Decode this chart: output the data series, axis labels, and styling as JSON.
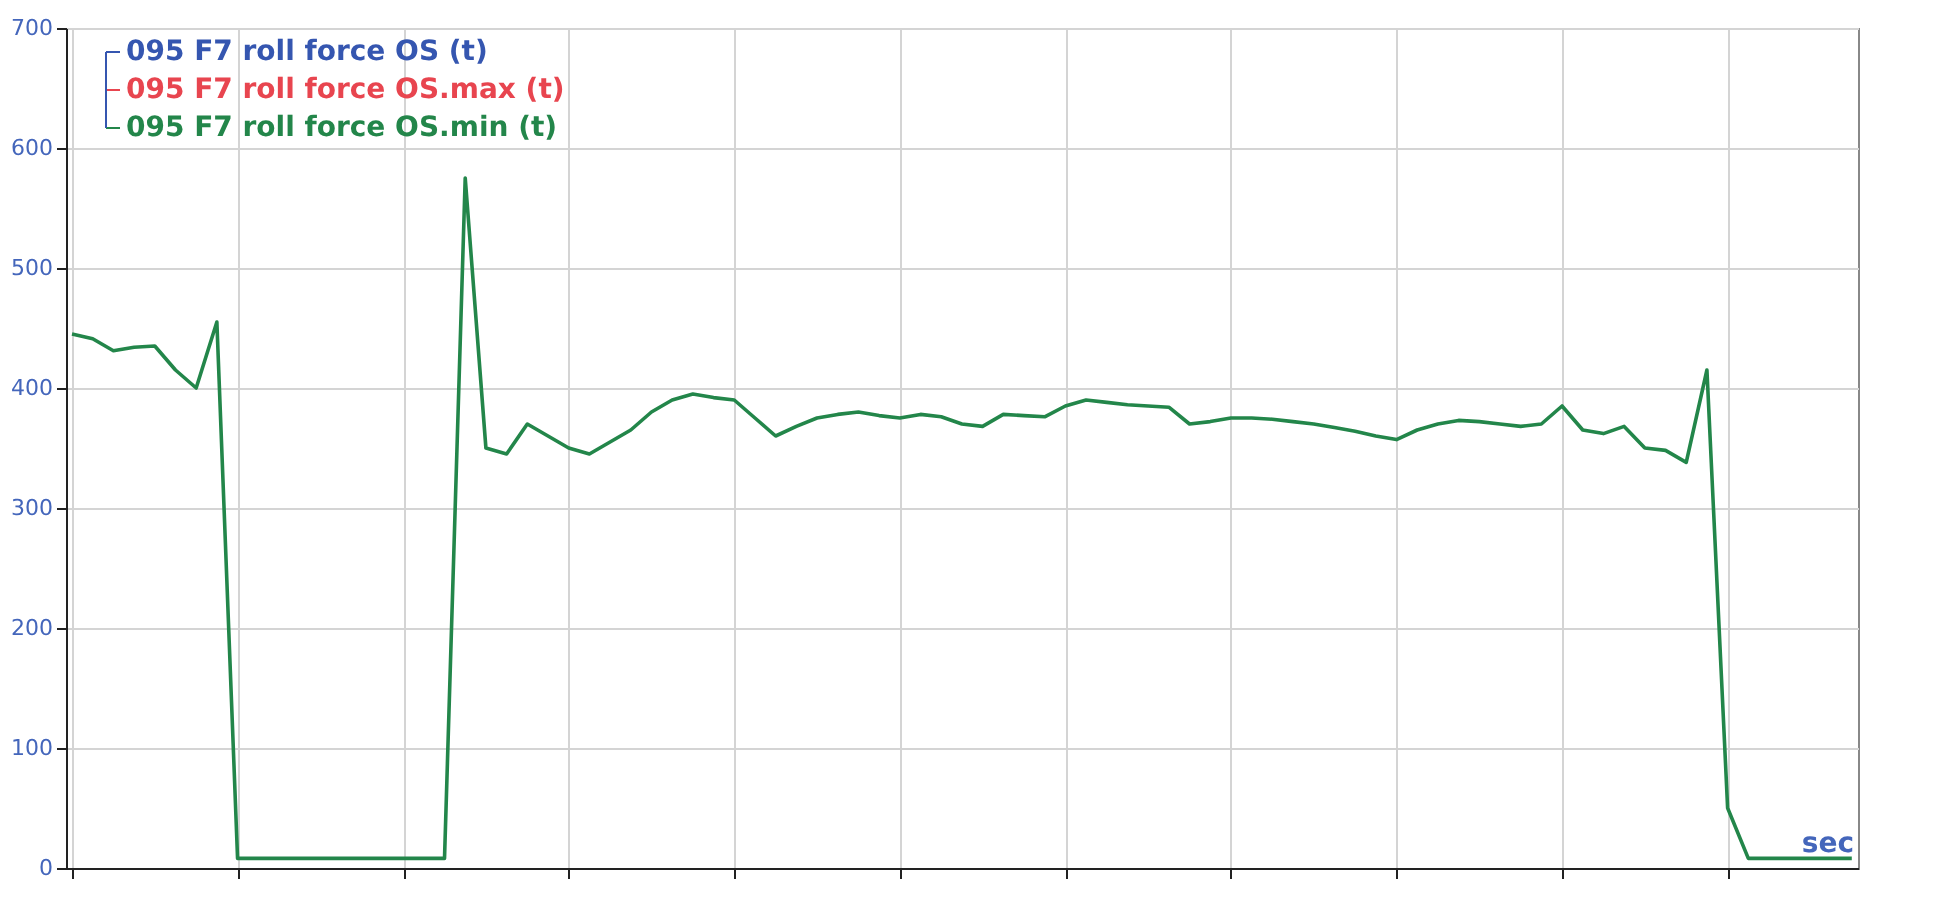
{
  "chart_data": {
    "type": "line",
    "xlabel": "sec",
    "categories": [
      null,
      null,
      null,
      null,
      null,
      null,
      null,
      null,
      null,
      null,
      null,
      null,
      null,
      null,
      null,
      null,
      null,
      null,
      null,
      null,
      null,
      null,
      null,
      null,
      null,
      null,
      null,
      null,
      null,
      null,
      null,
      null,
      null,
      null,
      null,
      null,
      null,
      null,
      null,
      null,
      null,
      null,
      null,
      null,
      null,
      null,
      null,
      null,
      null,
      null,
      null,
      null,
      null,
      null,
      null,
      null,
      null,
      null,
      null,
      null,
      null,
      null,
      null,
      null,
      null,
      null,
      null,
      null,
      null,
      null,
      null,
      null,
      null,
      null,
      null,
      null,
      null,
      null,
      null,
      null,
      null,
      null,
      null,
      null,
      null,
      null,
      null
    ],
    "series": [
      {
        "name": "095 F7 roll force OS (t)",
        "color": "#3556b0",
        "values": [
          null,
          null,
          null,
          null,
          null,
          null,
          null,
          null,
          null,
          null,
          null,
          null,
          null,
          null,
          null,
          null,
          null,
          null,
          null,
          null,
          null,
          null,
          null,
          null,
          null,
          null,
          null,
          null,
          null,
          null,
          null,
          null,
          null,
          null,
          null,
          null,
          null,
          null,
          null,
          null,
          null,
          null,
          null,
          null,
          null,
          null,
          null,
          null,
          null,
          null,
          null,
          null,
          null,
          null,
          null,
          null,
          null,
          null,
          null,
          null,
          null,
          null,
          null,
          null,
          null,
          null,
          null,
          null,
          null,
          null,
          null,
          null,
          null,
          null,
          null,
          null,
          null,
          null,
          null,
          null,
          null,
          null,
          null,
          null,
          null,
          null,
          null
        ]
      },
      {
        "name": "095 F7 roll force OS.max (t)",
        "color": "#e8454f",
        "values": [
          null,
          null,
          null,
          null,
          null,
          null,
          null,
          null,
          null,
          null,
          null,
          null,
          null,
          null,
          null,
          null,
          null,
          null,
          null,
          null,
          null,
          null,
          null,
          null,
          null,
          null,
          null,
          null,
          null,
          null,
          null,
          null,
          null,
          null,
          null,
          null,
          null,
          null,
          null,
          null,
          null,
          null,
          null,
          null,
          null,
          null,
          null,
          null,
          null,
          null,
          null,
          null,
          null,
          null,
          null,
          null,
          null,
          null,
          null,
          null,
          null,
          null,
          null,
          null,
          null,
          null,
          null,
          null,
          null,
          null,
          null,
          null,
          null,
          null,
          null,
          null,
          null,
          null,
          null,
          null,
          null,
          null,
          null,
          null,
          null,
          null,
          null
        ]
      },
      {
        "name": "095 F7 roll force OS.min (t)",
        "color": "#23864a",
        "values": [
          445,
          441,
          431,
          434,
          435,
          415,
          400,
          455,
          8,
          8,
          8,
          8,
          8,
          8,
          8,
          8,
          8,
          8,
          8,
          575,
          350,
          345,
          370,
          360,
          350,
          345,
          355,
          365,
          380,
          390,
          395,
          392,
          390,
          375,
          360,
          368,
          375,
          378,
          380,
          377,
          375,
          378,
          376,
          370,
          368,
          378,
          377,
          376,
          385,
          390,
          388,
          386,
          385,
          384,
          370,
          372,
          375,
          375,
          374,
          372,
          370,
          367,
          364,
          360,
          357,
          365,
          370,
          373,
          372,
          370,
          368,
          370,
          385,
          365,
          362,
          368,
          350,
          348,
          338,
          415,
          50,
          8,
          8,
          8,
          8,
          8,
          8
        ]
      }
    ],
    "ylim": [
      0,
      700
    ],
    "yticks": [
      0,
      100,
      200,
      300,
      400,
      500,
      600,
      700
    ],
    "tick_labels": "y",
    "grid": true,
    "legend": "top left",
    "marker": "none",
    "line_style": "solid"
  }
}
